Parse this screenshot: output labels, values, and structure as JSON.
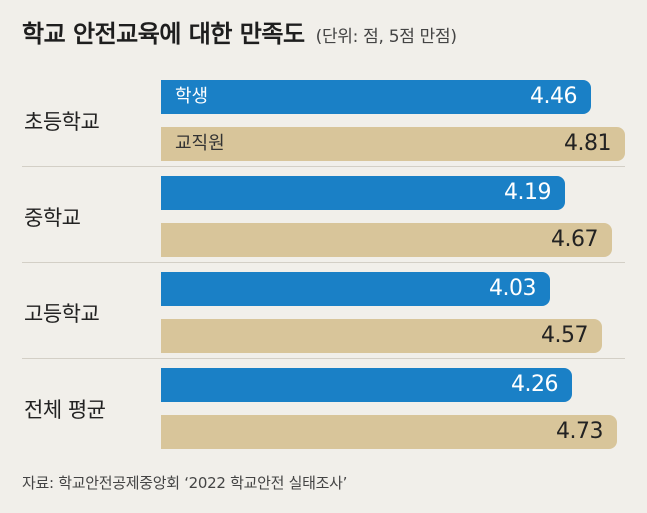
{
  "title": "학교 안전교육에 대한 만족도",
  "unit_note": "(단위: 점, 5점 만점)",
  "source": "자료: 학교안전공제중앙회 ‘2022 학교안전 실태조사’",
  "colors": {
    "student": "#1a80c6",
    "staff": "#d8c59a",
    "background": "#f1efea"
  },
  "chart_data": {
    "type": "bar",
    "orientation": "horizontal",
    "title": "학교 안전교육에 대한 만족도",
    "subtitle": "(단위: 점, 5점 만점)",
    "categories": [
      "초등학교",
      "중학교",
      "고등학교",
      "전체 평균"
    ],
    "series": [
      {
        "name": "학생",
        "values": [
          4.46,
          4.19,
          4.03,
          4.26
        ]
      },
      {
        "name": "교직원",
        "values": [
          4.81,
          4.67,
          4.57,
          4.73
        ]
      }
    ],
    "xlim": [
      0,
      5
    ],
    "grid": false,
    "legend": "inside first bars"
  }
}
